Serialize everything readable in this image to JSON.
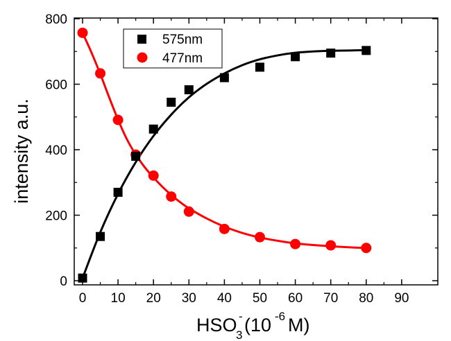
{
  "chart_data": {
    "type": "scatter",
    "xlabel": "HSO",
    "xlabel_sub": "3",
    "xlabel_sup": "-",
    "xlabel_rest_open": "(10",
    "xlabel_rest_sup": "-6",
    "xlabel_rest_close": "M)",
    "ylabel": "intensity a.u.",
    "xlim": [
      -2,
      90
    ],
    "ylim": [
      -15,
      800
    ],
    "xticks": [
      0,
      10,
      20,
      30,
      40,
      50,
      60,
      70,
      80,
      90
    ],
    "yticks": [
      0,
      200,
      400,
      600,
      800
    ],
    "legend_position": "top-left",
    "series": [
      {
        "name": "575nm",
        "color": "#000000",
        "marker": "square",
        "x": [
          0,
          5,
          10,
          15,
          20,
          25,
          30,
          40,
          50,
          60,
          70,
          80
        ],
        "y": [
          8,
          135,
          270,
          380,
          463,
          545,
          583,
          620,
          652,
          684,
          695,
          703
        ],
        "fit": {
          "x": [
            0,
            5,
            10,
            15,
            20,
            25,
            30,
            35,
            40,
            45,
            50,
            55,
            60,
            65,
            70,
            75,
            80
          ],
          "y": [
            8,
            148,
            265,
            362,
            442,
            507,
            560,
            601,
            633,
            658,
            676,
            688,
            696,
            700,
            702,
            703,
            704
          ]
        }
      },
      {
        "name": "477nm",
        "color": "#ff0000",
        "marker": "circle",
        "x": [
          0,
          5,
          10,
          15,
          20,
          25,
          30,
          40,
          50,
          60,
          70,
          80
        ],
        "y": [
          757,
          633,
          491,
          385,
          321,
          257,
          211,
          158,
          133,
          112,
          108,
          100
        ],
        "fit": {
          "x": [
            0,
            2.5,
            5,
            7.5,
            10,
            12.5,
            15,
            17.5,
            20,
            22.5,
            25,
            27.5,
            30,
            35,
            40,
            45,
            50,
            55,
            60,
            65,
            70,
            75,
            80
          ],
          "y": [
            757,
            697,
            631,
            560,
            492,
            432,
            385,
            347,
            315,
            287,
            262,
            240,
            221,
            190,
            165,
            146,
            132,
            122,
            114,
            109,
            105,
            102,
            100
          ]
        }
      }
    ]
  }
}
